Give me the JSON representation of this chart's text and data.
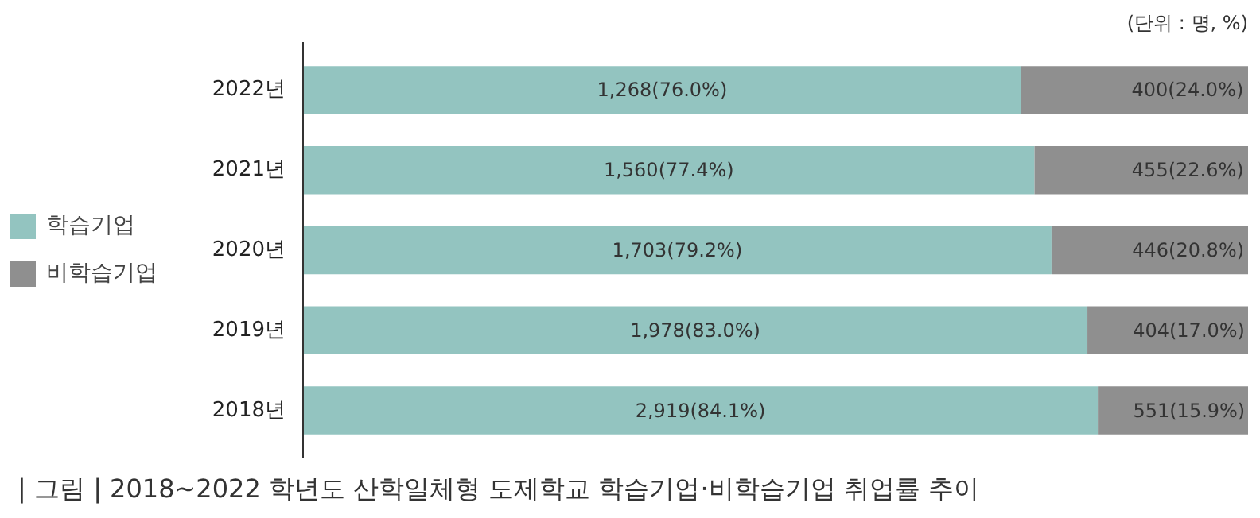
{
  "chart_data": {
    "type": "bar",
    "orientation": "horizontal",
    "stacked": true,
    "title": "| 그림 |  2018~2022 학년도 산학일체형 도제학교 학습기업·비학습기업 취업률 추이",
    "annotations": [
      "(단위 : 명, %)"
    ],
    "categories": [
      "2022년",
      "2021년",
      "2020년",
      "2019년",
      "2018년"
    ],
    "tick_labels": "y",
    "legend": "left",
    "series": [
      {
        "name": "학습기업",
        "color": "#93c4c0",
        "values": [
          76.0,
          77.4,
          79.2,
          83.0,
          84.1
        ],
        "value_labels": [
          "1,268(76.0%)",
          "1,560(77.4%)",
          "1,703(79.2%)",
          "1,978(83.0%)",
          "2,919(84.1%)"
        ]
      },
      {
        "name": "비학습기업",
        "color": "#8f8f8f",
        "values": [
          24.0,
          22.6,
          20.8,
          17.0,
          15.9
        ],
        "value_labels": [
          "400(24.0%)",
          "455(22.6%)",
          "446(20.8%)",
          "404(17.0%)",
          "551(15.9%)"
        ]
      }
    ]
  }
}
